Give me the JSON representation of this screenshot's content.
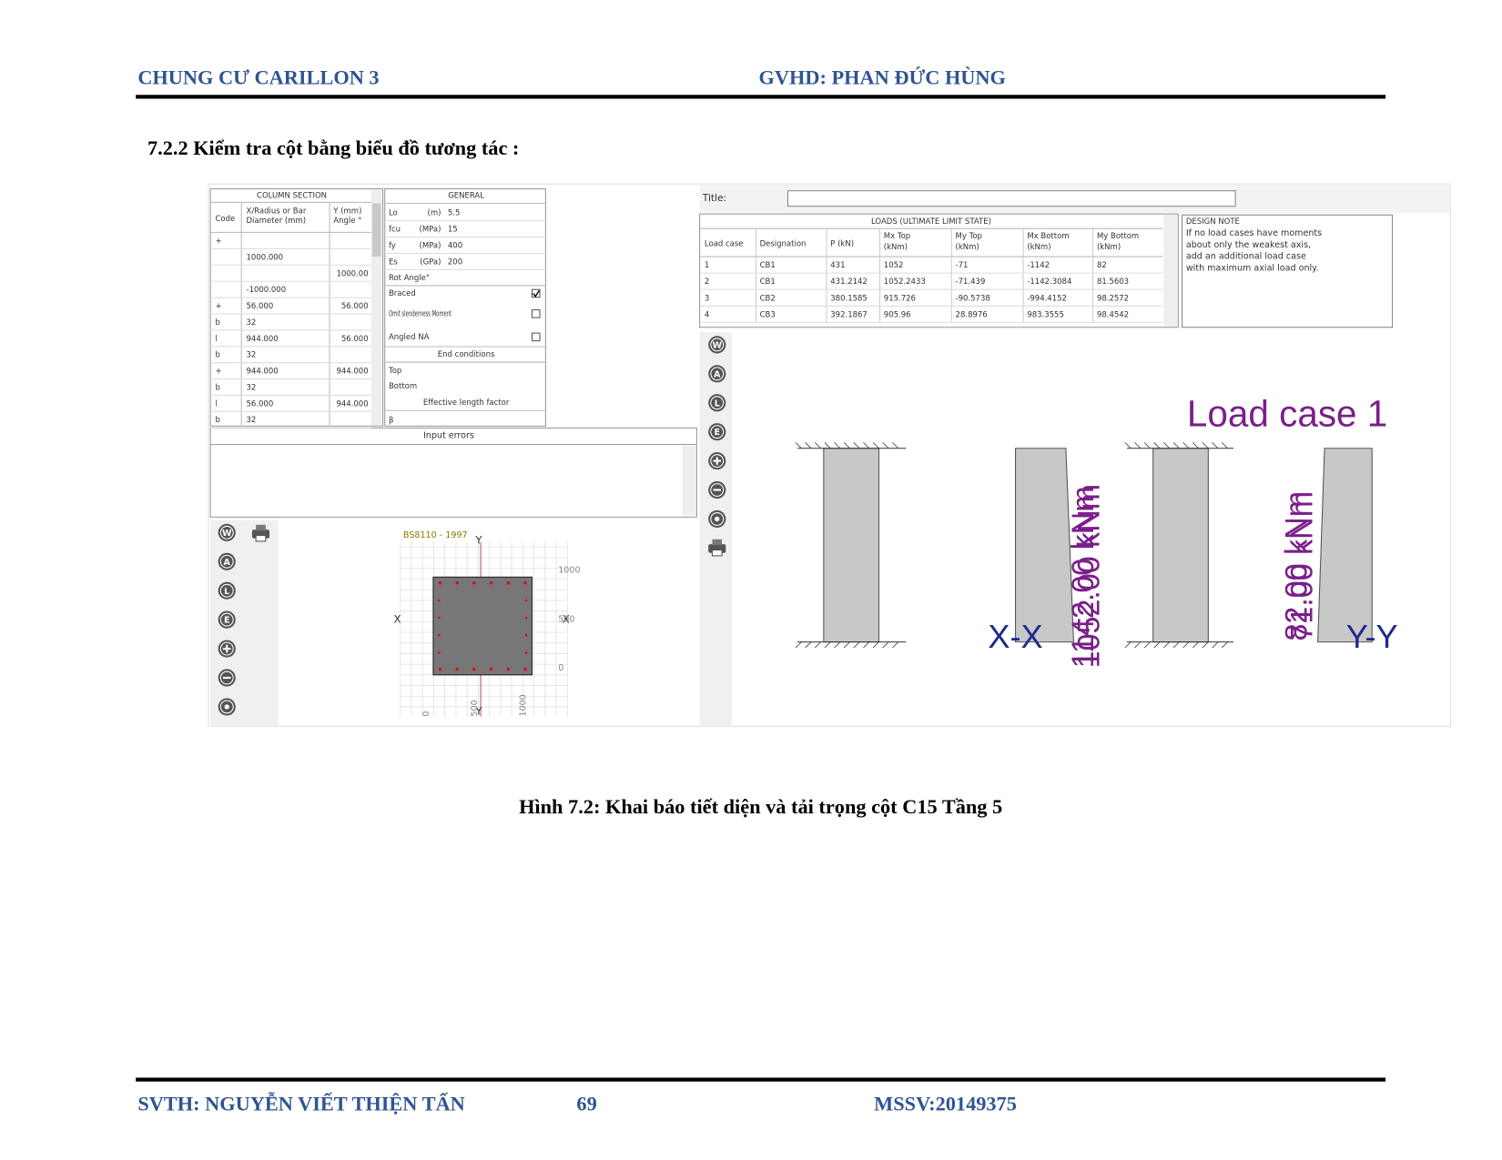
{
  "header": {
    "left": "CHUNG CƯ CARILLON 3",
    "right": "GVHD: PHAN ĐỨC HÙNG"
  },
  "section_heading": "7.2.2  Kiểm tra cột bằng biểu đồ tương tác :",
  "screenshot": {
    "column_section": {
      "title": "COLUMN SECTION",
      "columns": [
        [
          "Code"
        ],
        [
          "X/Radius or Bar",
          "Diameter (mm)"
        ],
        [
          "Y (mm)",
          "Angle °"
        ]
      ],
      "rows": [
        [
          "+",
          null,
          null
        ],
        [
          null,
          "1000.000",
          null
        ],
        [
          null,
          null,
          "1000.00"
        ],
        [
          null,
          "-1000.000",
          null
        ],
        [
          "+",
          "56.000",
          "56.000"
        ],
        [
          "b",
          "32",
          null
        ],
        [
          "l",
          "944.000",
          "56.000"
        ],
        [
          "b",
          "32",
          null
        ],
        [
          "+",
          "944.000",
          "944.000"
        ],
        [
          "b",
          "32",
          null
        ],
        [
          "l",
          "56.000",
          "944.000"
        ],
        [
          "b",
          "32",
          null
        ]
      ]
    },
    "general": {
      "title": "GENERAL",
      "rows": [
        [
          "Lo",
          "(m)",
          "5.5"
        ],
        [
          "fcu",
          "(MPa)",
          "15"
        ],
        [
          "fy",
          "(MPa)",
          "400"
        ],
        [
          "Es",
          "(GPa)",
          "200"
        ]
      ],
      "rot_angle": "Rot Angle°",
      "options": [
        {
          "label": "Braced",
          "checked": true
        },
        {
          "label": "Omit slenderness Moment",
          "checked": false
        },
        {
          "label": "Angled NA",
          "checked": false
        }
      ],
      "end_conditions": "End conditions",
      "ends": [
        "Top",
        "Bottom"
      ],
      "effective_length_factor": "Effective length factor",
      "beta": "β"
    },
    "input_errors": "Input errors",
    "title_label": "Title:",
    "loads": {
      "title": "LOADS (ULTIMATE LIMIT STATE)",
      "columns": [
        [
          "Load case"
        ],
        [
          "Designation"
        ],
        [
          "P (kN)"
        ],
        [
          "Mx Top",
          "(kNm)"
        ],
        [
          "My Top",
          "(kNm)"
        ],
        [
          "Mx Bottom",
          "(kNm)"
        ],
        [
          "My Bottom",
          "(kNm)"
        ]
      ],
      "rows": [
        [
          "1",
          "CB1",
          "431",
          "1052",
          "-71",
          "-1142",
          "82"
        ],
        [
          "2",
          "CB1",
          "431.2142",
          "1052.2433",
          "-71.439",
          "-1142.3084",
          "81.5603"
        ],
        [
          "3",
          "CB2",
          "380.1585",
          "915.726",
          "-90.5738",
          "-994.4152",
          "98.2572"
        ],
        [
          "4",
          "CB3",
          "392.1867",
          "905.96",
          "28.8976",
          "983.3555",
          "98.4542"
        ]
      ]
    },
    "design_note": {
      "title": "DESIGN NOTE",
      "lines": [
        "If no load cases have moments",
        "about only the weakest axis,",
        "add an additional load case",
        "with maximum axial load only."
      ]
    },
    "toolbar_buttons": [
      "W",
      "A",
      "L",
      "E"
    ],
    "section_plot": {
      "code": "BS8110 - 1997",
      "axis_x": "X",
      "axis_y": "Y",
      "right_ticks": [
        "1000",
        "500",
        "0"
      ],
      "bottom_ticks": [
        "0",
        "500",
        "1000"
      ]
    },
    "load_diagram": {
      "title": "Load case 1",
      "xx": "X-X",
      "yy": "Y-Y",
      "xx_moments": [
        "1052.00 kNm",
        "1142.00 kNm"
      ],
      "yy_moments": [
        "82.00 kNm",
        "71.00 kNm"
      ]
    }
  },
  "caption": "Hình 7.2: Khai báo tiết diện và tải trọng cột C15 Tầng 5",
  "footer": {
    "left": "SVTH: NGUYỄN VIẾT THIỆN TẤN",
    "page": "69",
    "right": "MSSV:20149375"
  }
}
